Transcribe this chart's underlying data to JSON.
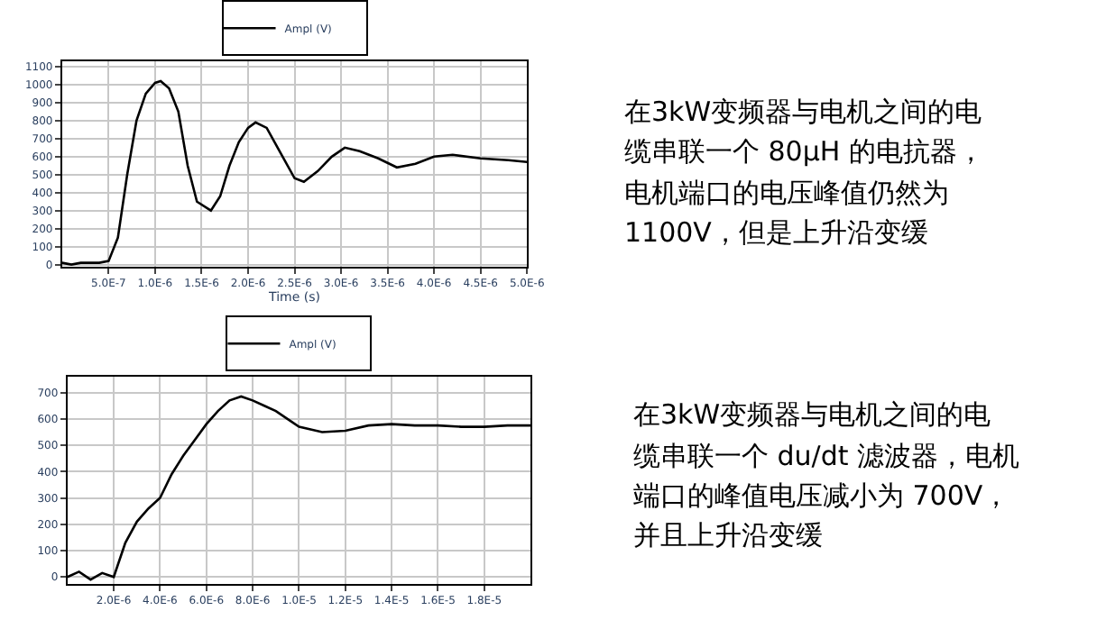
{
  "chart_data": [
    {
      "type": "line",
      "xlabel": "Time (s)",
      "legend": "top",
      "grid": true,
      "marker": "none",
      "line_style": "solid",
      "xlim": [
        0,
        5e-06
      ],
      "ylim": [
        -10,
        1130
      ],
      "xticks": [
        {
          "value": 5e-07,
          "label": "5.0E-7"
        },
        {
          "value": 1e-06,
          "label": "1.0E-6"
        },
        {
          "value": 1.5e-06,
          "label": "1.5E-6"
        },
        {
          "value": 2e-06,
          "label": "2.0E-6"
        },
        {
          "value": 2.5e-06,
          "label": "2.5E-6"
        },
        {
          "value": 3e-06,
          "label": "3.0E-6"
        },
        {
          "value": 3.5e-06,
          "label": "3.5E-6"
        },
        {
          "value": 4e-06,
          "label": "4.0E-6"
        },
        {
          "value": 4.5e-06,
          "label": "4.5E-6"
        },
        {
          "value": 5e-06,
          "label": "5.0E-6"
        }
      ],
      "yticks": [
        0,
        100,
        200,
        300,
        400,
        500,
        600,
        700,
        800,
        900,
        1000,
        1100
      ],
      "x": [
        0,
        1e-07,
        2e-07,
        3e-07,
        4e-07,
        5e-07,
        6e-07,
        7e-07,
        8e-07,
        9e-07,
        1e-06,
        1.06e-06,
        1.15e-06,
        1.25e-06,
        1.35e-06,
        1.45e-06,
        1.6e-06,
        1.7e-06,
        1.8e-06,
        1.9e-06,
        2e-06,
        2.08e-06,
        2.2e-06,
        2.35e-06,
        2.5e-06,
        2.6e-06,
        2.75e-06,
        2.9e-06,
        3.04e-06,
        3.2e-06,
        3.4e-06,
        3.6e-06,
        3.8e-06,
        4e-06,
        4.2e-06,
        4.5e-06,
        4.8e-06,
        5e-06
      ],
      "series": [
        {
          "name": "Ampl (V)",
          "color": "#000000",
          "values": [
            10,
            0,
            10,
            10,
            10,
            20,
            150,
            500,
            800,
            950,
            1010,
            1020,
            980,
            850,
            550,
            350,
            300,
            380,
            550,
            680,
            760,
            790,
            760,
            620,
            480,
            460,
            520,
            600,
            650,
            630,
            590,
            540,
            560,
            600,
            610,
            590,
            580,
            570
          ]
        }
      ]
    },
    {
      "type": "other",
      "annotations": [
        "在3kW变频器与电机之间的电",
        "缆串联一个 80μH 的电抗器，",
        "电机端口的电压峰值仍然为",
        "1100V，但是上升沿变缓"
      ]
    },
    {
      "type": "line",
      "legend": "top",
      "grid": true,
      "marker": "none",
      "line_style": "solid",
      "xlim": [
        0,
        2e-05
      ],
      "ylim": [
        -25,
        760
      ],
      "xticks": [
        {
          "value": 2e-06,
          "label": "2.0E-6"
        },
        {
          "value": 4e-06,
          "label": "4.0E-6"
        },
        {
          "value": 6e-06,
          "label": "6.0E-6"
        },
        {
          "value": 8e-06,
          "label": "8.0E-6"
        },
        {
          "value": 1e-05,
          "label": "1.0E-5"
        },
        {
          "value": 1.2e-05,
          "label": "1.2E-5"
        },
        {
          "value": 1.4e-05,
          "label": "1.4E-5"
        },
        {
          "value": 1.6e-05,
          "label": "1.6E-5"
        },
        {
          "value": 1.8e-05,
          "label": "1.8E-5"
        }
      ],
      "yticks": [
        0,
        100,
        200,
        300,
        400,
        500,
        600,
        700
      ],
      "x": [
        0,
        5e-07,
        1e-06,
        1.5e-06,
        2e-06,
        2.5e-06,
        3e-06,
        3.5e-06,
        4e-06,
        4.5e-06,
        5e-06,
        5.5e-06,
        6e-06,
        6.5e-06,
        7e-06,
        7.5e-06,
        8e-06,
        8.5e-06,
        9e-06,
        9.5e-06,
        1e-05,
        1.1e-05,
        1.2e-05,
        1.3e-05,
        1.4e-05,
        1.5e-05,
        1.6e-05,
        1.7e-05,
        1.8e-05,
        1.9e-05,
        2e-05
      ],
      "series": [
        {
          "name": "Ampl (V)",
          "color": "#000000",
          "values": [
            0,
            20,
            -10,
            15,
            0,
            130,
            210,
            260,
            300,
            390,
            460,
            520,
            580,
            630,
            670,
            685,
            670,
            650,
            630,
            600,
            570,
            550,
            555,
            575,
            580,
            575,
            575,
            570,
            570,
            575,
            575
          ]
        }
      ]
    },
    {
      "type": "other",
      "annotations": [
        "在3kW变频器与电机之间的电",
        "缆串联一个 du/dt 滤波器，电机",
        "端口的峰值电压减小为 700V，",
        "并且上升沿变缓"
      ]
    }
  ]
}
